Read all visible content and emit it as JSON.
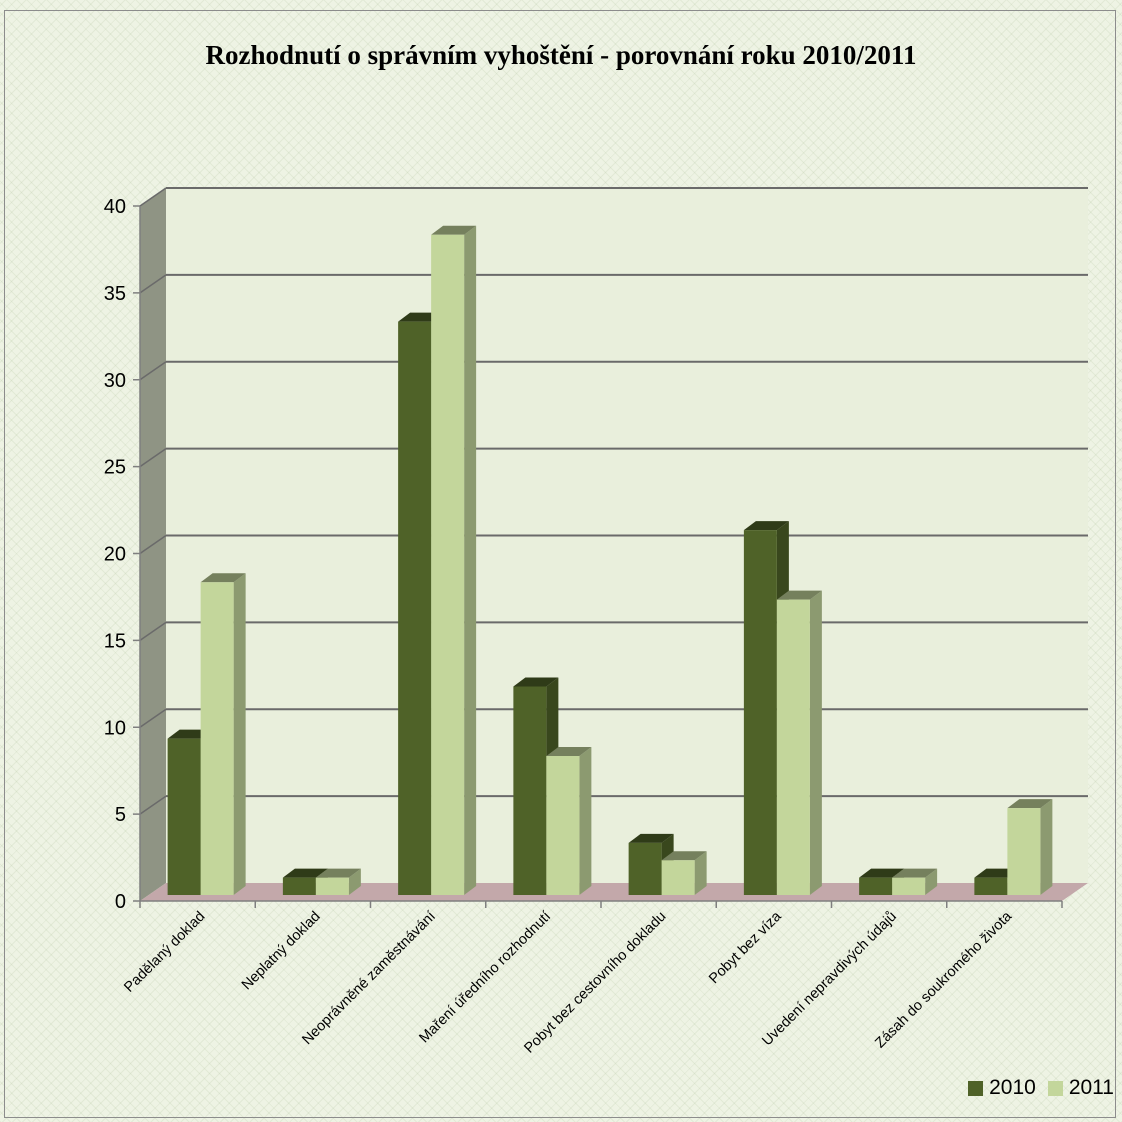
{
  "chart_data": {
    "type": "bar",
    "title": "Rozhodnutí o správním vyhoštění - porovnání roku 2010/2011",
    "categories": [
      "Padělaný doklad",
      "Neplatný doklad",
      "Neoprávněné zaměstnávání",
      "Maření úředního rozhodnutí",
      "Pobyt bez cestovního dokladu",
      "Pobyt bez víza",
      "Uvedení nepravdivých údajů",
      "Zásah do soukromého života"
    ],
    "series": [
      {
        "name": "2010",
        "values": [
          9,
          1,
          33,
          12,
          3,
          21,
          1,
          1
        ],
        "color": "#4f6228"
      },
      {
        "name": "2011",
        "values": [
          18,
          1,
          38,
          8,
          2,
          17,
          1,
          5
        ],
        "color": "#c3d69b"
      }
    ],
    "xlabel": "",
    "ylabel": "",
    "ylim": [
      0,
      40
    ],
    "yticks": [
      0,
      5,
      10,
      15,
      20,
      25,
      30,
      35,
      40
    ],
    "grid": true,
    "legend_position": "bottom-right",
    "style": "3d-clustered-column"
  }
}
